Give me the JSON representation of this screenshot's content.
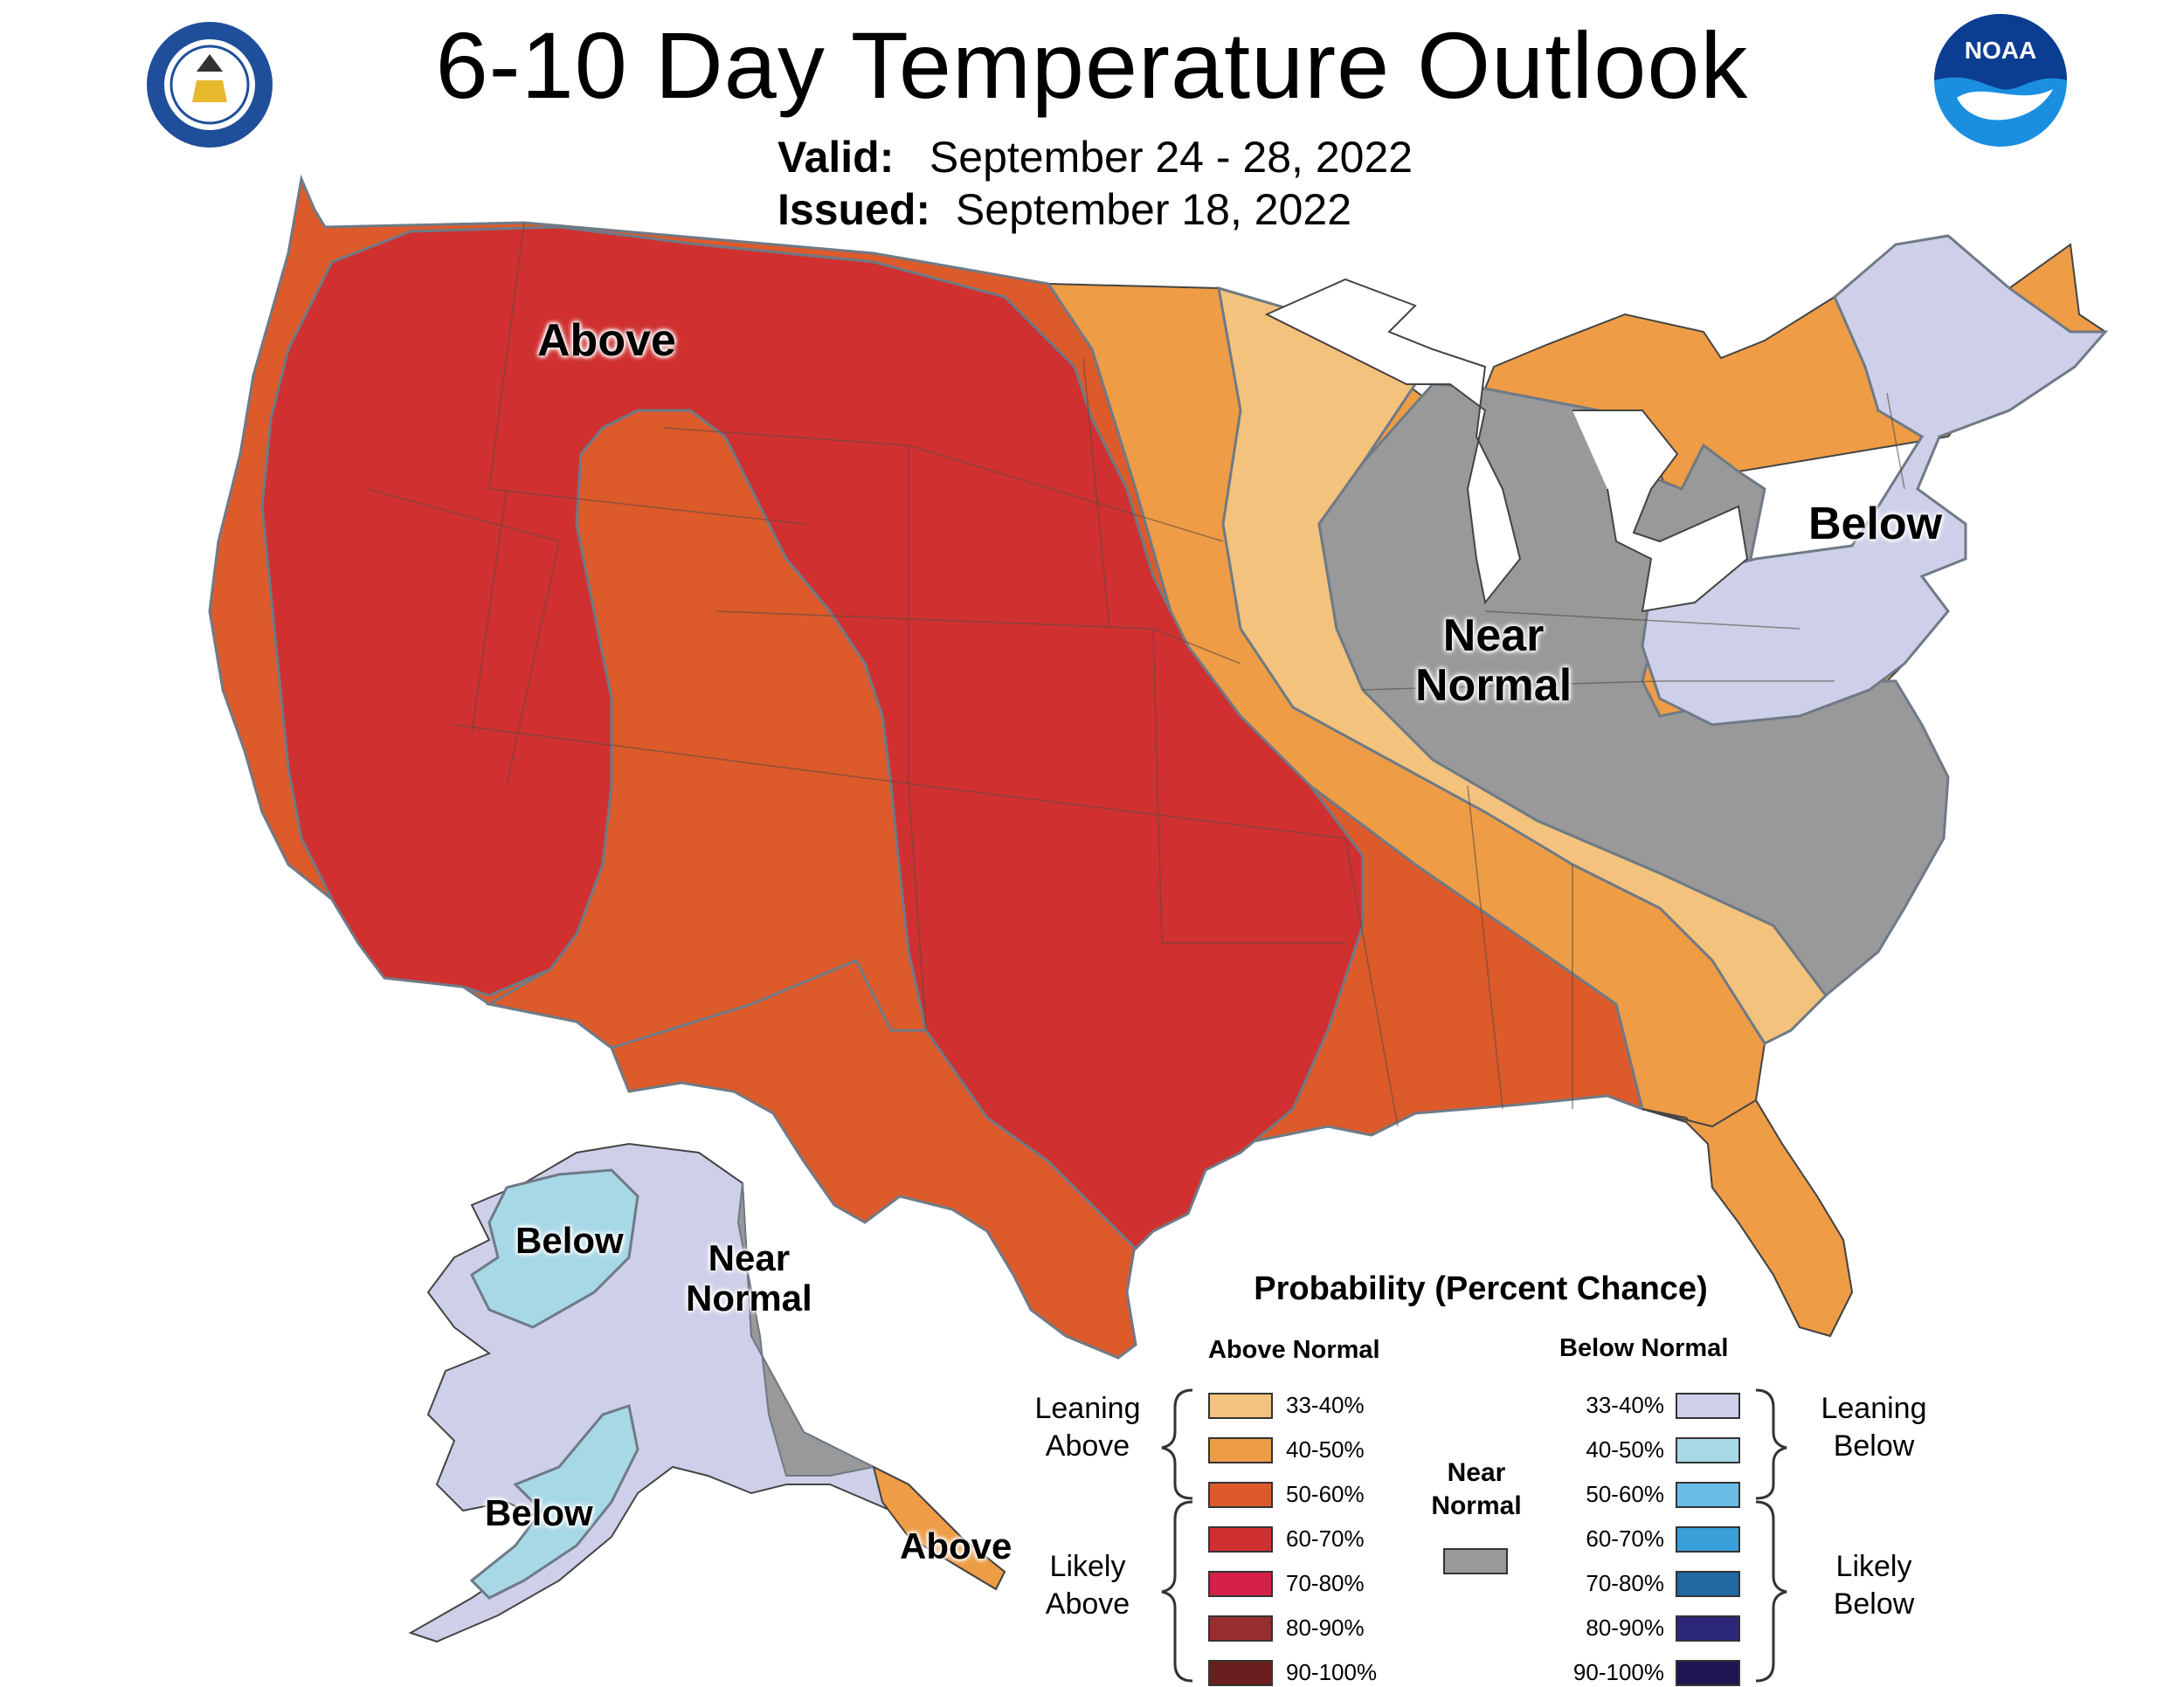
{
  "header": {
    "title": "6-10 Day Temperature Outlook",
    "valid_label": "Valid:",
    "valid_dates": "September 24 - 28, 2022",
    "issued_label": "Issued:",
    "issued_date": "September 18, 2022"
  },
  "map_labels": {
    "west_above": "Above",
    "northeast_below": "Below",
    "great_lakes_near_normal": [
      "Near",
      "Normal"
    ],
    "alaska_below_north": "Below",
    "alaska_near_normal": [
      "Near",
      "Normal"
    ],
    "alaska_below_south": "Below",
    "alaska_above": "Above"
  },
  "legend": {
    "title": "Probability (Percent Chance)",
    "above_header": "Above Normal",
    "below_header": "Below Normal",
    "leaning_above": [
      "Leaning",
      "Above"
    ],
    "likely_above": [
      "Likely",
      "Above"
    ],
    "leaning_below": [
      "Leaning",
      "Below"
    ],
    "likely_below": [
      "Likely",
      "Below"
    ],
    "near_normal": [
      "Near",
      "Normal"
    ],
    "near_normal_color": "#999999",
    "above": [
      {
        "range": "33-40%",
        "color": "#F3C27C"
      },
      {
        "range": "40-50%",
        "color": "#EE9C46"
      },
      {
        "range": "50-60%",
        "color": "#DD5A2B"
      },
      {
        "range": "60-70%",
        "color": "#D03030"
      },
      {
        "range": "70-80%",
        "color": "#D4204A"
      },
      {
        "range": "80-90%",
        "color": "#992E2E"
      },
      {
        "range": "90-100%",
        "color": "#6B1E1E"
      }
    ],
    "below": [
      {
        "range": "33-40%",
        "color": "#CDD0E8"
      },
      {
        "range": "40-50%",
        "color": "#A7D8E6"
      },
      {
        "range": "50-60%",
        "color": "#6BBDE6"
      },
      {
        "range": "60-70%",
        "color": "#3A9ED8"
      },
      {
        "range": "70-80%",
        "color": "#1F68A0"
      },
      {
        "range": "80-90%",
        "color": "#2C2678"
      },
      {
        "range": "90-100%",
        "color": "#1E1552"
      }
    ]
  },
  "colors": {
    "boundary": "#6E7A86",
    "state_line": "#5A4A40",
    "white_land": "#FFFFFF"
  }
}
